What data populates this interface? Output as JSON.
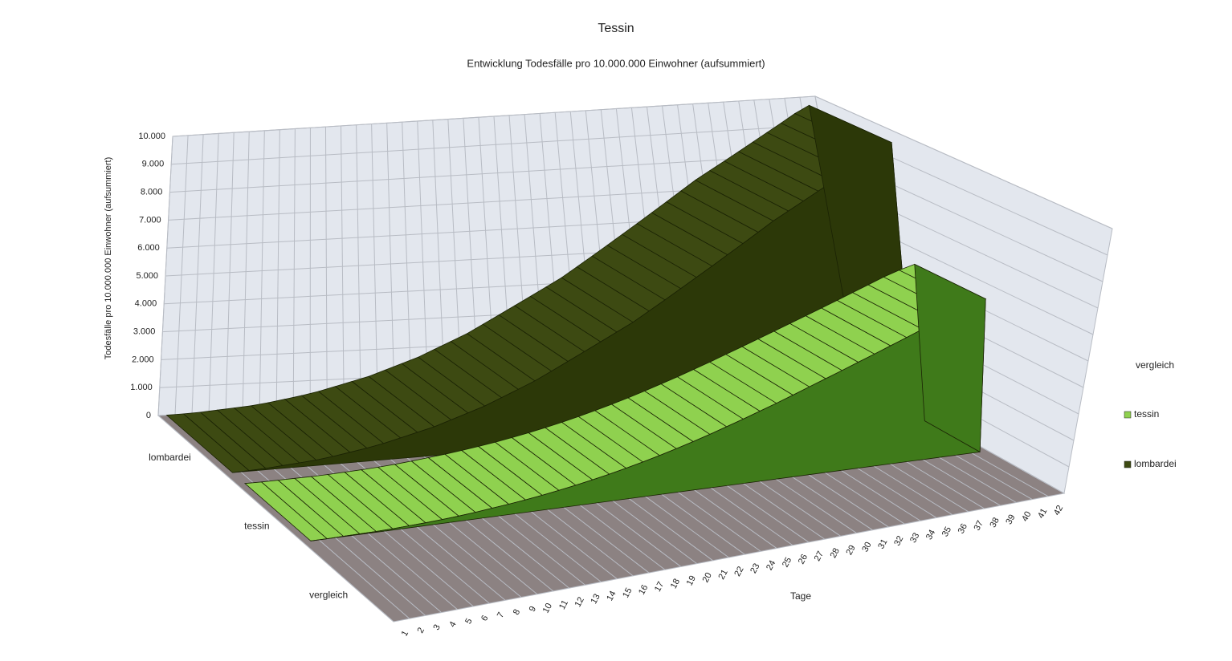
{
  "chart_data": {
    "type": "area3d",
    "title": "Tessin",
    "subtitle": "Entwicklung Todesfälle pro 10.000.000 Einwohner (aufsummiert)",
    "y_label": "Todesfälle pro 10.000.000 Einwohner (aufsummiert)",
    "x_label": "Tage",
    "legend_title": "vergleich",
    "depth_categories": [
      "lombardei",
      "tessin",
      "vergleich"
    ],
    "categories": [
      "1",
      "2",
      "3",
      "4",
      "5",
      "6",
      "7",
      "8",
      "9",
      "10",
      "11",
      "12",
      "13",
      "14",
      "15",
      "16",
      "17",
      "18",
      "19",
      "20",
      "21",
      "22",
      "23",
      "24",
      "25",
      "26",
      "27",
      "28",
      "29",
      "30",
      "31",
      "32",
      "33",
      "34",
      "35",
      "36",
      "37",
      "38",
      "39",
      "40",
      "41",
      "42"
    ],
    "series": [
      {
        "name": "tessin",
        "color": "#8fd14f",
        "side_color": "#3f7a1a",
        "values": [
          0,
          0,
          10,
          20,
          30,
          50,
          80,
          110,
          150,
          200,
          260,
          330,
          400,
          480,
          570,
          670,
          780,
          900,
          1030,
          1170,
          1320,
          1480,
          1650,
          1830,
          2020,
          2220,
          2420,
          2630,
          2840,
          3060,
          3280,
          3500,
          3720,
          3940,
          4160,
          4380,
          4600,
          4820,
          5040,
          5260,
          5450,
          5600
        ]
      },
      {
        "name": "lombardei",
        "color": "#3d4a12",
        "side_color": "#2c3808",
        "values": [
          0,
          20,
          50,
          100,
          150,
          200,
          280,
          380,
          480,
          600,
          750,
          900,
          1050,
          1250,
          1450,
          1650,
          1900,
          2150,
          2400,
          2700,
          3000,
          3300,
          3600,
          3900,
          4200,
          4550,
          4900,
          5250,
          5600,
          5950,
          6300,
          6650,
          7000,
          7350,
          7650,
          7950,
          8250,
          8550,
          8850,
          9150,
          9450,
          9700
        ]
      }
    ],
    "ylim": [
      0,
      10000
    ],
    "yticks": [
      0,
      {
        "value": 1000,
        "label": "1.000"
      },
      {
        "value": 2000,
        "label": "2.000"
      },
      {
        "value": 3000,
        "label": "3.000"
      },
      {
        "value": 4000,
        "label": "4.000"
      },
      {
        "value": 5000,
        "label": "5.000"
      },
      {
        "value": 6000,
        "label": "6.000"
      },
      {
        "value": 7000,
        "label": "7.000"
      },
      {
        "value": 8000,
        "label": "8.000"
      },
      {
        "value": 9000,
        "label": "9.000"
      },
      {
        "value": 10000,
        "label": "10.000"
      }
    ],
    "grid": true
  }
}
